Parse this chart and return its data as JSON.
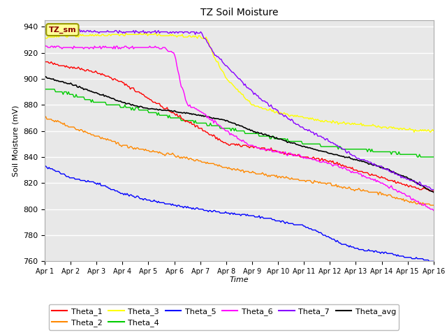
{
  "title": "TZ Soil Moisture",
  "xlabel": "Time",
  "ylabel": "Soil Moisture (mV)",
  "ylim": [
    760,
    945
  ],
  "bg_color": "#e8e8e8",
  "label_box_text": "TZ_sm",
  "label_box_color": "#ffff99",
  "label_box_edge": "#999900",
  "label_text_color": "#880000",
  "series": {
    "Theta_1": {
      "color": "#ff0000",
      "lw": 1.0
    },
    "Theta_2": {
      "color": "#ff8800",
      "lw": 1.0
    },
    "Theta_3": {
      "color": "#ffff00",
      "lw": 1.0
    },
    "Theta_4": {
      "color": "#00cc00",
      "lw": 1.0
    },
    "Theta_5": {
      "color": "#0000ff",
      "lw": 1.0
    },
    "Theta_6": {
      "color": "#ff00ff",
      "lw": 1.0
    },
    "Theta_7": {
      "color": "#8800ff",
      "lw": 1.0
    },
    "Theta_avg": {
      "color": "#000000",
      "lw": 1.2
    }
  },
  "xtick_labels": [
    "Apr 1",
    "Apr 2",
    "Apr 3",
    "Apr 4",
    "Apr 5",
    "Apr 6",
    "Apr 7",
    "Apr 8",
    "Apr 9",
    "Apr 10",
    "Apr 11",
    "Apr 12",
    "Apr 13",
    "Apr 14",
    "Apr 15",
    "Apr 16"
  ],
  "ytick_values": [
    760,
    780,
    800,
    820,
    840,
    860,
    880,
    900,
    920,
    940
  ]
}
